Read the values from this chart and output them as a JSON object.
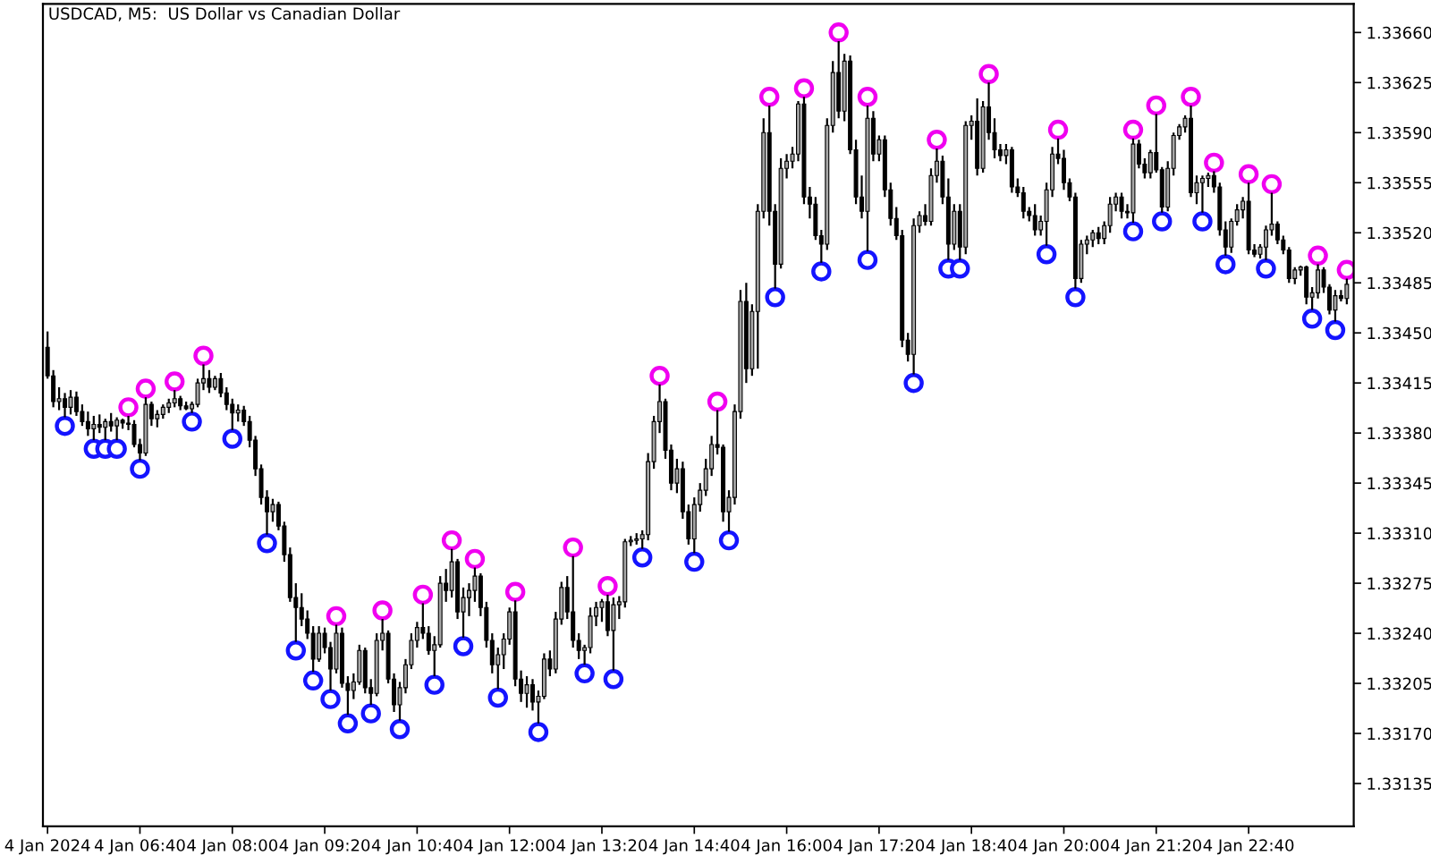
{
  "chart_data": {
    "type": "candlestick",
    "title": "USDCAD, M5:  US Dollar vs Canadian Dollar",
    "x": [
      "2024-01-04T05:20",
      "2024-01-04T05:25",
      "2024-01-04T05:30",
      "2024-01-04T05:35",
      "2024-01-04T05:40",
      "2024-01-04T05:45",
      "2024-01-04T05:50",
      "2024-01-04T05:55",
      "2024-01-04T06:00",
      "2024-01-04T06:05",
      "2024-01-04T06:10",
      "2024-01-04T06:15",
      "2024-01-04T06:20",
      "2024-01-04T06:25",
      "2024-01-04T06:30",
      "2024-01-04T06:35",
      "2024-01-04T06:40",
      "2024-01-04T06:45",
      "2024-01-04T06:50",
      "2024-01-04T06:55",
      "2024-01-04T07:00",
      "2024-01-04T07:05",
      "2024-01-04T07:10",
      "2024-01-04T07:15",
      "2024-01-04T07:20",
      "2024-01-04T07:25",
      "2024-01-04T07:30",
      "2024-01-04T07:35",
      "2024-01-04T07:40",
      "2024-01-04T07:45",
      "2024-01-04T07:50",
      "2024-01-04T07:55",
      "2024-01-04T08:00",
      "2024-01-04T08:05",
      "2024-01-04T08:10",
      "2024-01-04T08:15",
      "2024-01-04T08:20",
      "2024-01-04T08:25",
      "2024-01-04T08:30",
      "2024-01-04T08:35",
      "2024-01-04T08:40",
      "2024-01-04T08:45",
      "2024-01-04T08:50",
      "2024-01-04T08:55",
      "2024-01-04T09:00",
      "2024-01-04T09:05",
      "2024-01-04T09:10",
      "2024-01-04T09:15",
      "2024-01-04T09:20",
      "2024-01-04T09:25",
      "2024-01-04T09:30",
      "2024-01-04T09:35",
      "2024-01-04T09:40",
      "2024-01-04T09:45",
      "2024-01-04T09:50",
      "2024-01-04T09:55",
      "2024-01-04T10:00",
      "2024-01-04T10:05",
      "2024-01-04T10:10",
      "2024-01-04T10:15",
      "2024-01-04T10:20",
      "2024-01-04T10:25",
      "2024-01-04T10:30",
      "2024-01-04T10:35",
      "2024-01-04T10:40",
      "2024-01-04T10:45",
      "2024-01-04T10:50",
      "2024-01-04T10:55",
      "2024-01-04T11:00",
      "2024-01-04T11:05",
      "2024-01-04T11:10",
      "2024-01-04T11:15",
      "2024-01-04T11:20",
      "2024-01-04T11:25",
      "2024-01-04T11:30",
      "2024-01-04T11:35",
      "2024-01-04T11:40",
      "2024-01-04T11:45",
      "2024-01-04T11:50",
      "2024-01-04T11:55",
      "2024-01-04T12:00",
      "2024-01-04T12:05",
      "2024-01-04T12:10",
      "2024-01-04T12:15",
      "2024-01-04T12:20",
      "2024-01-04T12:25",
      "2024-01-04T12:30",
      "2024-01-04T12:35",
      "2024-01-04T12:40",
      "2024-01-04T12:45",
      "2024-01-04T12:50",
      "2024-01-04T12:55",
      "2024-01-04T13:00",
      "2024-01-04T13:05",
      "2024-01-04T13:10",
      "2024-01-04T13:15",
      "2024-01-04T13:20",
      "2024-01-04T13:25",
      "2024-01-04T13:30",
      "2024-01-04T13:35",
      "2024-01-04T13:40",
      "2024-01-04T13:45",
      "2024-01-04T13:50",
      "2024-01-04T13:55",
      "2024-01-04T14:00",
      "2024-01-04T14:05",
      "2024-01-04T14:10",
      "2024-01-04T14:15",
      "2024-01-04T14:20",
      "2024-01-04T14:25",
      "2024-01-04T14:30",
      "2024-01-04T14:35",
      "2024-01-04T14:40",
      "2024-01-04T14:45",
      "2024-01-04T14:50",
      "2024-01-04T14:55",
      "2024-01-04T15:00",
      "2024-01-04T15:05",
      "2024-01-04T15:10",
      "2024-01-04T15:15",
      "2024-01-04T15:20",
      "2024-01-04T15:25",
      "2024-01-04T15:30",
      "2024-01-04T15:35",
      "2024-01-04T15:40",
      "2024-01-04T15:45",
      "2024-01-04T15:50",
      "2024-01-04T15:55",
      "2024-01-04T16:00",
      "2024-01-04T16:05",
      "2024-01-04T16:10",
      "2024-01-04T16:15",
      "2024-01-04T16:20",
      "2024-01-04T16:25",
      "2024-01-04T16:30",
      "2024-01-04T16:35",
      "2024-01-04T16:40",
      "2024-01-04T16:45",
      "2024-01-04T16:50",
      "2024-01-04T16:55",
      "2024-01-04T17:00",
      "2024-01-04T17:05",
      "2024-01-04T17:10",
      "2024-01-04T17:15",
      "2024-01-04T17:20",
      "2024-01-04T17:25",
      "2024-01-04T17:30",
      "2024-01-04T17:35",
      "2024-01-04T17:40",
      "2024-01-04T17:45",
      "2024-01-04T17:50",
      "2024-01-04T17:55",
      "2024-01-04T18:00",
      "2024-01-04T18:05",
      "2024-01-04T18:10",
      "2024-01-04T18:15",
      "2024-01-04T18:20",
      "2024-01-04T18:25",
      "2024-01-04T18:30",
      "2024-01-04T18:35",
      "2024-01-04T18:40",
      "2024-01-04T18:45",
      "2024-01-04T18:50",
      "2024-01-04T18:55",
      "2024-01-04T19:00",
      "2024-01-04T19:05",
      "2024-01-04T19:10",
      "2024-01-04T19:15",
      "2024-01-04T19:20",
      "2024-01-04T19:25",
      "2024-01-04T19:30",
      "2024-01-04T19:35",
      "2024-01-04T19:40",
      "2024-01-04T19:45",
      "2024-01-04T19:50",
      "2024-01-04T19:55",
      "2024-01-04T20:00",
      "2024-01-04T20:05",
      "2024-01-04T20:10",
      "2024-01-04T20:15",
      "2024-01-04T20:20",
      "2024-01-04T20:25",
      "2024-01-04T20:30",
      "2024-01-04T20:35",
      "2024-01-04T20:40",
      "2024-01-04T20:45",
      "2024-01-04T20:50",
      "2024-01-04T20:55",
      "2024-01-04T21:00",
      "2024-01-04T21:05",
      "2024-01-04T21:10",
      "2024-01-04T21:15",
      "2024-01-04T21:20",
      "2024-01-04T21:25",
      "2024-01-04T21:30",
      "2024-01-04T21:35",
      "2024-01-04T21:40",
      "2024-01-04T21:45",
      "2024-01-04T21:50",
      "2024-01-04T21:55",
      "2024-01-04T22:00",
      "2024-01-04T22:05",
      "2024-01-04T22:10",
      "2024-01-04T22:15",
      "2024-01-04T22:20",
      "2024-01-04T22:25",
      "2024-01-04T22:30",
      "2024-01-04T22:35",
      "2024-01-04T22:40",
      "2024-01-04T22:45",
      "2024-01-04T22:50",
      "2024-01-04T22:55",
      "2024-01-04T23:00",
      "2024-01-04T23:05",
      "2024-01-04T23:10",
      "2024-01-04T23:15",
      "2024-01-04T23:20",
      "2024-01-04T23:25",
      "2024-01-04T23:30",
      "2024-01-04T23:35",
      "2024-01-04T23:40",
      "2024-01-04T23:45",
      "2024-01-04T23:50",
      "2024-01-04T23:55",
      "2024-01-05T00:00",
      "2024-01-05T00:05"
    ],
    "ohlc": [
      [
        1.3344,
        1.33451,
        1.33418,
        1.3342
      ],
      [
        1.3342,
        1.33424,
        1.33398,
        1.33402
      ],
      [
        1.33402,
        1.33412,
        1.33396,
        1.33404
      ],
      [
        1.33404,
        1.33408,
        1.33391,
        1.33398
      ],
      [
        1.33398,
        1.3341,
        1.33393,
        1.33405
      ],
      [
        1.33405,
        1.33409,
        1.33392,
        1.33395
      ],
      [
        1.33395,
        1.334,
        1.33385,
        1.33388
      ],
      [
        1.33388,
        1.33395,
        1.33378,
        1.33383
      ],
      [
        1.33383,
        1.33392,
        1.33375,
        1.33386
      ],
      [
        1.33386,
        1.33393,
        1.3338,
        1.33384
      ],
      [
        1.33384,
        1.3339,
        1.33375,
        1.33388
      ],
      [
        1.33388,
        1.33394,
        1.33381,
        1.33385
      ],
      [
        1.33385,
        1.33391,
        1.33375,
        1.33389
      ],
      [
        1.33389,
        1.3339,
        1.33383,
        1.33387
      ],
      [
        1.33387,
        1.33392,
        1.33382,
        1.33386
      ],
      [
        1.33386,
        1.33389,
        1.3337,
        1.33372
      ],
      [
        1.33372,
        1.33376,
        1.33361,
        1.33366
      ],
      [
        1.33366,
        1.33405,
        1.33364,
        1.334
      ],
      [
        1.334,
        1.33402,
        1.33385,
        1.3339
      ],
      [
        1.3339,
        1.33396,
        1.33384,
        1.33393
      ],
      [
        1.33393,
        1.334,
        1.3339,
        1.33398
      ],
      [
        1.33398,
        1.33404,
        1.33394,
        1.33401
      ],
      [
        1.33401,
        1.3341,
        1.33398,
        1.33404
      ],
      [
        1.33404,
        1.33406,
        1.33396,
        1.33399
      ],
      [
        1.33399,
        1.33402,
        1.33396,
        1.33397
      ],
      [
        1.33397,
        1.33402,
        1.33394,
        1.334
      ],
      [
        1.334,
        1.33418,
        1.33398,
        1.33415
      ],
      [
        1.33415,
        1.33428,
        1.3341,
        1.33418
      ],
      [
        1.33418,
        1.33424,
        1.33408,
        1.33412
      ],
      [
        1.33412,
        1.3342,
        1.3341,
        1.33418
      ],
      [
        1.33418,
        1.33422,
        1.33405,
        1.33408
      ],
      [
        1.33408,
        1.33412,
        1.33396,
        1.334
      ],
      [
        1.334,
        1.33404,
        1.33382,
        1.33394
      ],
      [
        1.33394,
        1.334,
        1.33388,
        1.33396
      ],
      [
        1.33396,
        1.33399,
        1.33385,
        1.33388
      ],
      [
        1.33388,
        1.33392,
        1.3337,
        1.33375
      ],
      [
        1.33375,
        1.33378,
        1.3335,
        1.33355
      ],
      [
        1.33355,
        1.33358,
        1.3333,
        1.33335
      ],
      [
        1.33335,
        1.3334,
        1.33309,
        1.33325
      ],
      [
        1.33325,
        1.33334,
        1.33318,
        1.3333
      ],
      [
        1.3333,
        1.33332,
        1.33312,
        1.33315
      ],
      [
        1.33315,
        1.33318,
        1.3329,
        1.33295
      ],
      [
        1.33295,
        1.333,
        1.33262,
        1.33265
      ],
      [
        1.33265,
        1.33275,
        1.33234,
        1.33258
      ],
      [
        1.33258,
        1.33268,
        1.33245,
        1.3325
      ],
      [
        1.3325,
        1.33256,
        1.33236,
        1.3324
      ],
      [
        1.3324,
        1.33245,
        1.33213,
        1.33222
      ],
      [
        1.33222,
        1.33245,
        1.3322,
        1.3324
      ],
      [
        1.3324,
        1.33244,
        1.33226,
        1.3323
      ],
      [
        1.3323,
        1.33234,
        1.332,
        1.33215
      ],
      [
        1.33215,
        1.33246,
        1.33212,
        1.3324
      ],
      [
        1.3324,
        1.33244,
        1.33202,
        1.33205
      ],
      [
        1.33205,
        1.3321,
        1.33183,
        1.332
      ],
      [
        1.332,
        1.33212,
        1.33194,
        1.33206
      ],
      [
        1.33206,
        1.33232,
        1.33204,
        1.33228
      ],
      [
        1.33228,
        1.3323,
        1.33198,
        1.33202
      ],
      [
        1.33202,
        1.33208,
        1.3319,
        1.33198
      ],
      [
        1.33198,
        1.3324,
        1.33196,
        1.33235
      ],
      [
        1.33235,
        1.3325,
        1.33228,
        1.3324
      ],
      [
        1.3324,
        1.33242,
        1.33205,
        1.33208
      ],
      [
        1.33208,
        1.33212,
        1.33185,
        1.3319
      ],
      [
        1.3319,
        1.33206,
        1.33179,
        1.33202
      ],
      [
        1.33202,
        1.33222,
        1.33198,
        1.33218
      ],
      [
        1.33218,
        1.3324,
        1.33215,
        1.33235
      ],
      [
        1.33235,
        1.33248,
        1.3323,
        1.33244
      ],
      [
        1.33244,
        1.33261,
        1.33236,
        1.3324
      ],
      [
        1.3324,
        1.33245,
        1.33225,
        1.33228
      ],
      [
        1.33228,
        1.33238,
        1.3321,
        1.33232
      ],
      [
        1.33232,
        1.3328,
        1.3323,
        1.33275
      ],
      [
        1.33275,
        1.33285,
        1.33262,
        1.3327
      ],
      [
        1.3327,
        1.33299,
        1.33265,
        1.3329
      ],
      [
        1.3329,
        1.33292,
        1.3325,
        1.33255
      ],
      [
        1.33255,
        1.33272,
        1.33237,
        1.33265
      ],
      [
        1.33265,
        1.33275,
        1.33252,
        1.3327
      ],
      [
        1.3327,
        1.33286,
        1.33262,
        1.3328
      ],
      [
        1.3328,
        1.33282,
        1.33252,
        1.33258
      ],
      [
        1.33258,
        1.33262,
        1.3323,
        1.33235
      ],
      [
        1.33235,
        1.3324,
        1.33212,
        1.33218
      ],
      [
        1.33218,
        1.3323,
        1.33201,
        1.33225
      ],
      [
        1.33225,
        1.3324,
        1.33215,
        1.33236
      ],
      [
        1.33236,
        1.33258,
        1.33232,
        1.33255
      ],
      [
        1.33255,
        1.33263,
        1.33203,
        1.33208
      ],
      [
        1.33208,
        1.33214,
        1.33192,
        1.33198
      ],
      [
        1.33198,
        1.3321,
        1.33188,
        1.33204
      ],
      [
        1.33204,
        1.33208,
        1.33186,
        1.33192
      ],
      [
        1.33192,
        1.332,
        1.33177,
        1.33196
      ],
      [
        1.33196,
        1.33226,
        1.33194,
        1.33222
      ],
      [
        1.33222,
        1.33228,
        1.3321,
        1.33215
      ],
      [
        1.33215,
        1.33255,
        1.33212,
        1.3325
      ],
      [
        1.3325,
        1.33276,
        1.33246,
        1.33272
      ],
      [
        1.33272,
        1.3328,
        1.3325,
        1.33255
      ],
      [
        1.33255,
        1.33294,
        1.3323,
        1.33235
      ],
      [
        1.33235,
        1.3324,
        1.33222,
        1.33228
      ],
      [
        1.33228,
        1.33232,
        1.33218,
        1.3323
      ],
      [
        1.3323,
        1.33258,
        1.33226,
        1.33252
      ],
      [
        1.33252,
        1.33262,
        1.33245,
        1.33258
      ],
      [
        1.33258,
        1.33264,
        1.33248,
        1.33262
      ],
      [
        1.33262,
        1.33267,
        1.33238,
        1.33242
      ],
      [
        1.33242,
        1.33265,
        1.33214,
        1.3326
      ],
      [
        1.3326,
        1.33266,
        1.3325,
        1.33262
      ],
      [
        1.33262,
        1.33306,
        1.33258,
        1.33304
      ],
      [
        1.33304,
        1.33308,
        1.33301,
        1.33305
      ],
      [
        1.33305,
        1.3331,
        1.33302,
        1.33306
      ],
      [
        1.33306,
        1.33312,
        1.33299,
        1.33309
      ],
      [
        1.33309,
        1.33366,
        1.33305,
        1.3336
      ],
      [
        1.3336,
        1.33392,
        1.33355,
        1.33388
      ],
      [
        1.33388,
        1.33414,
        1.3338,
        1.33402
      ],
      [
        1.33402,
        1.33404,
        1.33362,
        1.33368
      ],
      [
        1.33368,
        1.33372,
        1.3334,
        1.33345
      ],
      [
        1.33345,
        1.33362,
        1.33338,
        1.33355
      ],
      [
        1.33355,
        1.3336,
        1.3332,
        1.33325
      ],
      [
        1.33325,
        1.3333,
        1.33302,
        1.33306
      ],
      [
        1.33306,
        1.33335,
        1.33296,
        1.3333
      ],
      [
        1.3333,
        1.33345,
        1.33325,
        1.3334
      ],
      [
        1.3334,
        1.33362,
        1.33336,
        1.33355
      ],
      [
        1.33355,
        1.33378,
        1.3335,
        1.33372
      ],
      [
        1.33372,
        1.33396,
        1.33365,
        1.3337
      ],
      [
        1.3337,
        1.33372,
        1.33318,
        1.33325
      ],
      [
        1.33325,
        1.3334,
        1.33311,
        1.33335
      ],
      [
        1.33335,
        1.334,
        1.3333,
        1.33395
      ],
      [
        1.33395,
        1.3348,
        1.3339,
        1.33472
      ],
      [
        1.33472,
        1.33485,
        1.33415,
        1.33425
      ],
      [
        1.33425,
        1.3347,
        1.3342,
        1.33465
      ],
      [
        1.33465,
        1.3354,
        1.33425,
        1.33535
      ],
      [
        1.33535,
        1.336,
        1.3353,
        1.3359
      ],
      [
        1.3359,
        1.33609,
        1.33525,
        1.33535
      ],
      [
        1.33535,
        1.3354,
        1.33481,
        1.33498
      ],
      [
        1.33498,
        1.33572,
        1.33495,
        1.33565
      ],
      [
        1.33565,
        1.33575,
        1.33558,
        1.3357
      ],
      [
        1.3357,
        1.3358,
        1.33565,
        1.33575
      ],
      [
        1.33575,
        1.33612,
        1.3357,
        1.3361
      ],
      [
        1.3361,
        1.33615,
        1.3354,
        1.33545
      ],
      [
        1.33545,
        1.33552,
        1.3353,
        1.3354
      ],
      [
        1.3354,
        1.33545,
        1.33515,
        1.33518
      ],
      [
        1.33518,
        1.33522,
        1.33499,
        1.33512
      ],
      [
        1.33512,
        1.336,
        1.33508,
        1.33595
      ],
      [
        1.33595,
        1.3364,
        1.3359,
        1.33632
      ],
      [
        1.33632,
        1.33654,
        1.336,
        1.33605
      ],
      [
        1.33605,
        1.33645,
        1.33598,
        1.3364
      ],
      [
        1.3364,
        1.33644,
        1.33575,
        1.33578
      ],
      [
        1.33578,
        1.33585,
        1.3354,
        1.33545
      ],
      [
        1.33545,
        1.3356,
        1.3353,
        1.33535
      ],
      [
        1.33535,
        1.33609,
        1.33507,
        1.336
      ],
      [
        1.336,
        1.33605,
        1.3357,
        1.33575
      ],
      [
        1.33575,
        1.33588,
        1.3357,
        1.33585
      ],
      [
        1.33585,
        1.33588,
        1.33545,
        1.3355
      ],
      [
        1.3355,
        1.33555,
        1.33525,
        1.3353
      ],
      [
        1.3353,
        1.33538,
        1.33515,
        1.33518
      ],
      [
        1.33518,
        1.33522,
        1.3344,
        1.33445
      ],
      [
        1.33445,
        1.3345,
        1.3343,
        1.33435
      ],
      [
        1.33435,
        1.3353,
        1.33421,
        1.33525
      ],
      [
        1.33525,
        1.33535,
        1.3352,
        1.33532
      ],
      [
        1.33532,
        1.3354,
        1.33525,
        1.33528
      ],
      [
        1.33528,
        1.33565,
        1.33525,
        1.3356
      ],
      [
        1.3356,
        1.33579,
        1.33555,
        1.3357
      ],
      [
        1.3357,
        1.33574,
        1.3354,
        1.33545
      ],
      [
        1.33545,
        1.33558,
        1.33501,
        1.33512
      ],
      [
        1.33512,
        1.3354,
        1.33508,
        1.33535
      ],
      [
        1.33535,
        1.3354,
        1.33501,
        1.3351
      ],
      [
        1.3351,
        1.33598,
        1.33505,
        1.33595
      ],
      [
        1.33595,
        1.33602,
        1.33585,
        1.33598
      ],
      [
        1.33598,
        1.33614,
        1.3356,
        1.33565
      ],
      [
        1.33565,
        1.33612,
        1.33562,
        1.33608
      ],
      [
        1.33608,
        1.33625,
        1.33585,
        1.3359
      ],
      [
        1.3359,
        1.336,
        1.33572,
        1.33578
      ],
      [
        1.33578,
        1.33582,
        1.3357,
        1.33574
      ],
      [
        1.33574,
        1.33582,
        1.33568,
        1.33578
      ],
      [
        1.33578,
        1.3358,
        1.33548,
        1.33552
      ],
      [
        1.33552,
        1.33558,
        1.33545,
        1.33548
      ],
      [
        1.33548,
        1.33552,
        1.3353,
        1.33535
      ],
      [
        1.33535,
        1.33538,
        1.33528,
        1.33532
      ],
      [
        1.33532,
        1.3354,
        1.33518,
        1.33522
      ],
      [
        1.33522,
        1.33532,
        1.33518,
        1.33528
      ],
      [
        1.33528,
        1.33555,
        1.33511,
        1.3355
      ],
      [
        1.3355,
        1.3358,
        1.33545,
        1.33575
      ],
      [
        1.33575,
        1.33586,
        1.33568,
        1.33572
      ],
      [
        1.33572,
        1.33578,
        1.3355,
        1.33555
      ],
      [
        1.33555,
        1.33558,
        1.33542,
        1.33545
      ],
      [
        1.33545,
        1.33548,
        1.33481,
        1.33488
      ],
      [
        1.33488,
        1.33515,
        1.33485,
        1.33512
      ],
      [
        1.33512,
        1.33518,
        1.33505,
        1.33515
      ],
      [
        1.33515,
        1.33522,
        1.3351,
        1.3352
      ],
      [
        1.3352,
        1.33524,
        1.33512,
        1.33516
      ],
      [
        1.33516,
        1.33528,
        1.33512,
        1.33525
      ],
      [
        1.33525,
        1.33545,
        1.3352,
        1.3354
      ],
      [
        1.3354,
        1.33548,
        1.33535,
        1.33545
      ],
      [
        1.33545,
        1.33548,
        1.3353,
        1.33535
      ],
      [
        1.33535,
        1.3354,
        1.3353,
        1.33534
      ],
      [
        1.33534,
        1.33586,
        1.33527,
        1.33582
      ],
      [
        1.33582,
        1.33585,
        1.33565,
        1.33568
      ],
      [
        1.33568,
        1.33572,
        1.33558,
        1.33562
      ],
      [
        1.33562,
        1.33578,
        1.33558,
        1.33576
      ],
      [
        1.33576,
        1.33603,
        1.33562,
        1.33564
      ],
      [
        1.33564,
        1.33566,
        1.33534,
        1.33538
      ],
      [
        1.33538,
        1.3357,
        1.33535,
        1.33565
      ],
      [
        1.33565,
        1.3359,
        1.3356,
        1.33588
      ],
      [
        1.33588,
        1.33596,
        1.33585,
        1.33594
      ],
      [
        1.33594,
        1.33602,
        1.3359,
        1.336
      ],
      [
        1.336,
        1.33609,
        1.33545,
        1.33548
      ],
      [
        1.33548,
        1.3356,
        1.3354,
        1.33555
      ],
      [
        1.33555,
        1.3356,
        1.33534,
        1.33558
      ],
      [
        1.33558,
        1.33562,
        1.33552,
        1.3356
      ],
      [
        1.3356,
        1.33563,
        1.33548,
        1.33552
      ],
      [
        1.33552,
        1.33555,
        1.33518,
        1.33522
      ],
      [
        1.33522,
        1.33528,
        1.33504,
        1.3351
      ],
      [
        1.3351,
        1.3353,
        1.33506,
        1.33528
      ],
      [
        1.33528,
        1.3354,
        1.33525,
        1.33536
      ],
      [
        1.33536,
        1.33545,
        1.3353,
        1.33542
      ],
      [
        1.33542,
        1.33555,
        1.33505,
        1.33508
      ],
      [
        1.33508,
        1.33512,
        1.33503,
        1.33505
      ],
      [
        1.33505,
        1.33512,
        1.33502,
        1.3351
      ],
      [
        1.3351,
        1.33525,
        1.33501,
        1.33522
      ],
      [
        1.33522,
        1.33548,
        1.33518,
        1.33526
      ],
      [
        1.33526,
        1.33528,
        1.33512,
        1.33515
      ],
      [
        1.33515,
        1.33518,
        1.33505,
        1.33508
      ],
      [
        1.33508,
        1.3351,
        1.33485,
        1.33488
      ],
      [
        1.33488,
        1.33496,
        1.33484,
        1.33494
      ],
      [
        1.33494,
        1.33497,
        1.3349,
        1.33496
      ],
      [
        1.33496,
        1.33497,
        1.3347,
        1.33475
      ],
      [
        1.33475,
        1.33482,
        1.33466,
        1.33478
      ],
      [
        1.33478,
        1.33498,
        1.33474,
        1.33494
      ],
      [
        1.33494,
        1.33496,
        1.33478,
        1.33482
      ],
      [
        1.33482,
        1.33484,
        1.33463,
        1.33466
      ],
      [
        1.33466,
        1.3348,
        1.33458,
        1.33476
      ],
      [
        1.33476,
        1.3348,
        1.33472,
        1.33474
      ],
      [
        1.33474,
        1.33488,
        1.3347,
        1.33484
      ]
    ],
    "colors": [
      "#000000",
      "#000000",
      "#a6a6a6",
      "#000000",
      "#a6a6a6",
      "#000000",
      "#000000",
      "#000000",
      "#a6a6a6",
      "#000000",
      "#a6a6a6",
      "#000000",
      "#a6a6a6",
      "#000000",
      "#000000",
      "#000000",
      "#000000",
      "#a6a6a6",
      "#000000",
      "#a6a6a6",
      "#a6a6a6",
      "#a6a6a6",
      "#a6a6a6",
      "#000000",
      "#000000",
      "#a6a6a6",
      "#a6a6a6",
      "#a6a6a6",
      "#000000",
      "#a6a6a6",
      "#000000",
      "#000000",
      "#000000",
      "#a6a6a6",
      "#000000",
      "#000000",
      "#000000",
      "#000000",
      "#000000",
      "#a6a6a6",
      "#000000",
      "#000000",
      "#000000",
      "#000000",
      "#000000",
      "#000000",
      "#000000",
      "#a6a6a6",
      "#000000",
      "#000000",
      "#a6a6a6",
      "#000000",
      "#000000",
      "#a6a6a6",
      "#a6a6a6",
      "#000000",
      "#000000",
      "#a6a6a6",
      "#a6a6a6",
      "#000000",
      "#000000",
      "#a6a6a6",
      "#a6a6a6",
      "#a6a6a6",
      "#a6a6a6",
      "#000000",
      "#000000",
      "#a6a6a6",
      "#a6a6a6",
      "#000000",
      "#a6a6a6",
      "#000000",
      "#a6a6a6",
      "#a6a6a6",
      "#a6a6a6",
      "#000000",
      "#000000",
      "#000000",
      "#a6a6a6",
      "#a6a6a6",
      "#a6a6a6",
      "#000000",
      "#000000",
      "#a6a6a6",
      "#000000",
      "#a6a6a6",
      "#a6a6a6",
      "#000000",
      "#a6a6a6",
      "#a6a6a6",
      "#000000",
      "#000000",
      "#000000",
      "#a6a6a6",
      "#a6a6a6",
      "#a6a6a6",
      "#a6a6a6",
      "#000000",
      "#a6a6a6",
      "#a6a6a6",
      "#a6a6a6",
      "#a6a6a6",
      "#a6a6a6",
      "#a6a6a6",
      "#a6a6a6",
      "#a6a6a6",
      "#a6a6a6",
      "#000000",
      "#000000",
      "#a6a6a6",
      "#000000",
      "#000000",
      "#a6a6a6",
      "#a6a6a6",
      "#a6a6a6",
      "#a6a6a6",
      "#000000",
      "#000000",
      "#a6a6a6",
      "#a6a6a6",
      "#a6a6a6",
      "#000000",
      "#a6a6a6",
      "#a6a6a6",
      "#a6a6a6",
      "#000000",
      "#000000",
      "#a6a6a6",
      "#a6a6a6",
      "#a6a6a6",
      "#a6a6a6",
      "#000000",
      "#000000",
      "#000000",
      "#000000",
      "#a6a6a6",
      "#a6a6a6",
      "#000000",
      "#a6a6a6",
      "#000000",
      "#000000",
      "#000000",
      "#a6a6a6",
      "#000000",
      "#a6a6a6",
      "#000000",
      "#000000",
      "#000000",
      "#000000",
      "#000000",
      "#a6a6a6",
      "#a6a6a6",
      "#000000",
      "#a6a6a6",
      "#a6a6a6",
      "#000000",
      "#000000",
      "#a6a6a6",
      "#000000",
      "#a6a6a6",
      "#a6a6a6",
      "#000000",
      "#a6a6a6",
      "#000000",
      "#000000",
      "#000000",
      "#a6a6a6",
      "#000000",
      "#000000",
      "#000000",
      "#000000",
      "#000000",
      "#a6a6a6",
      "#a6a6a6",
      "#a6a6a6",
      "#000000",
      "#000000",
      "#000000",
      "#000000",
      "#a6a6a6",
      "#a6a6a6",
      "#a6a6a6",
      "#000000",
      "#a6a6a6",
      "#a6a6a6",
      "#a6a6a6",
      "#000000",
      "#000000",
      "#a6a6a6",
      "#000000",
      "#000000",
      "#a6a6a6",
      "#000000",
      "#000000",
      "#a6a6a6",
      "#a6a6a6",
      "#a6a6a6",
      "#a6a6a6",
      "#000000",
      "#a6a6a6",
      "#a6a6a6",
      "#a6a6a6",
      "#000000",
      "#000000",
      "#000000",
      "#a6a6a6",
      "#a6a6a6",
      "#a6a6a6",
      "#000000",
      "#000000",
      "#a6a6a6",
      "#a6a6a6",
      "#a6a6a6",
      "#000000",
      "#000000",
      "#000000",
      "#a6a6a6",
      "#a6a6a6",
      "#000000",
      "#a6a6a6",
      "#a6a6a6",
      "#000000",
      "#000000",
      "#a6a6a6",
      "#000000",
      "#a6a6a6"
    ],
    "series": [
      {
        "type": "scatter",
        "color": "#f000f0",
        "x": [
          "2024-01-04T06:30",
          "2024-01-04T06:45",
          "2024-01-04T07:10",
          "2024-01-04T07:35",
          "2024-01-04T09:30",
          "2024-01-04T10:10",
          "2024-01-04T10:45",
          "2024-01-04T11:10",
          "2024-01-04T11:30",
          "2024-01-04T12:05",
          "2024-01-04T12:55",
          "2024-01-04T13:25",
          "2024-01-04T14:10",
          "2024-01-04T15:00",
          "2024-01-04T15:45",
          "2024-01-04T16:15",
          "2024-01-04T16:45",
          "2024-01-04T17:10",
          "2024-01-04T18:10",
          "2024-01-04T18:55",
          "2024-01-04T19:55",
          "2024-01-04T21:00",
          "2024-01-04T21:20",
          "2024-01-04T21:50",
          "2024-01-04T22:10",
          "2024-01-04T22:40",
          "2024-01-04T23:00",
          "2024-01-04T23:40",
          "2024-01-05T00:05"
        ],
        "values": [
          1.33398,
          1.33411,
          1.33416,
          1.33434,
          1.33252,
          1.33256,
          1.33267,
          1.33305,
          1.33292,
          1.33269,
          1.333,
          1.33273,
          1.3342,
          1.33402,
          1.33615,
          1.33621,
          1.3366,
          1.33615,
          1.33585,
          1.33631,
          1.33592,
          1.33592,
          1.33609,
          1.33615,
          1.33569,
          1.33561,
          1.33554,
          1.33504,
          1.33494
        ]
      },
      {
        "type": "scatter",
        "color": "#1414ff",
        "x": [
          "2024-01-04T05:35",
          "2024-01-04T06:00",
          "2024-01-04T06:10",
          "2024-01-04T06:20",
          "2024-01-04T06:40",
          "2024-01-04T07:25",
          "2024-01-04T08:00",
          "2024-01-04T08:30",
          "2024-01-04T08:55",
          "2024-01-04T09:10",
          "2024-01-04T09:25",
          "2024-01-04T09:40",
          "2024-01-04T10:00",
          "2024-01-04T10:25",
          "2024-01-04T10:55",
          "2024-01-04T11:20",
          "2024-01-04T11:50",
          "2024-01-04T12:25",
          "2024-01-04T13:05",
          "2024-01-04T13:30",
          "2024-01-04T13:55",
          "2024-01-04T14:40",
          "2024-01-04T15:10",
          "2024-01-04T15:50",
          "2024-01-04T16:30",
          "2024-01-04T17:10",
          "2024-01-04T17:50",
          "2024-01-04T18:20",
          "2024-01-04T18:30",
          "2024-01-04T19:45",
          "2024-01-04T20:10",
          "2024-01-04T21:00",
          "2024-01-04T21:25",
          "2024-01-04T22:00",
          "2024-01-04T22:20",
          "2024-01-04T22:55",
          "2024-01-04T23:35",
          "2024-01-04T23:55"
        ],
        "values": [
          1.33385,
          1.33369,
          1.33369,
          1.33369,
          1.33355,
          1.33388,
          1.33376,
          1.33303,
          1.33228,
          1.33207,
          1.33194,
          1.33177,
          1.33184,
          1.33173,
          1.33204,
          1.33231,
          1.33195,
          1.33171,
          1.33212,
          1.33208,
          1.33293,
          1.3329,
          1.33305,
          1.33475,
          1.33493,
          1.33501,
          1.33415,
          1.33495,
          1.33495,
          1.33505,
          1.33475,
          1.33521,
          1.33528,
          1.33528,
          1.33498,
          1.33495,
          1.3346,
          1.33452
        ]
      }
    ],
    "marker": "circle",
    "xlim": [
      "2024-01-04T05:16",
      "2024-01-05T00:11"
    ],
    "xticks": [
      {
        "value": "2024-01-04T05:20",
        "label": "4 Jan 2024"
      },
      {
        "value": "2024-01-04T06:40",
        "label": "4 Jan 06:40"
      },
      {
        "value": "2024-01-04T08:00",
        "label": "4 Jan 08:00"
      },
      {
        "value": "2024-01-04T09:20",
        "label": "4 Jan 09:20"
      },
      {
        "value": "2024-01-04T10:40",
        "label": "4 Jan 10:40"
      },
      {
        "value": "2024-01-04T12:00",
        "label": "4 Jan 12:00"
      },
      {
        "value": "2024-01-04T13:20",
        "label": "4 Jan 13:20"
      },
      {
        "value": "2024-01-04T14:40",
        "label": "4 Jan 14:40"
      },
      {
        "value": "2024-01-04T16:00",
        "label": "4 Jan 16:00"
      },
      {
        "value": "2024-01-04T17:20",
        "label": "4 Jan 17:20"
      },
      {
        "value": "2024-01-04T18:40",
        "label": "4 Jan 18:40"
      },
      {
        "value": "2024-01-04T20:00",
        "label": "4 Jan 20:00"
      },
      {
        "value": "2024-01-04T21:20",
        "label": "4 Jan 21:20"
      },
      {
        "value": "2024-01-04T22:40",
        "label": "4 Jan 22:40"
      }
    ],
    "ylim": [
      1.33105,
      1.3368
    ],
    "yticks": [
      1.33135,
      {
        "value": 1.3317,
        "label": "1.33170"
      },
      1.33205,
      {
        "value": 1.3324,
        "label": "1.33240"
      },
      1.33275,
      {
        "value": 1.3331,
        "label": "1.33310"
      },
      1.33345,
      {
        "value": 1.3338,
        "label": "1.33380"
      },
      1.33415,
      {
        "value": 1.3345,
        "label": "1.33450"
      },
      1.33485,
      {
        "value": 1.3352,
        "label": "1.33520"
      },
      1.33555,
      {
        "value": 1.3359,
        "label": "1.33590"
      },
      1.33625,
      {
        "value": 1.3366,
        "label": "1.33660"
      }
    ]
  }
}
